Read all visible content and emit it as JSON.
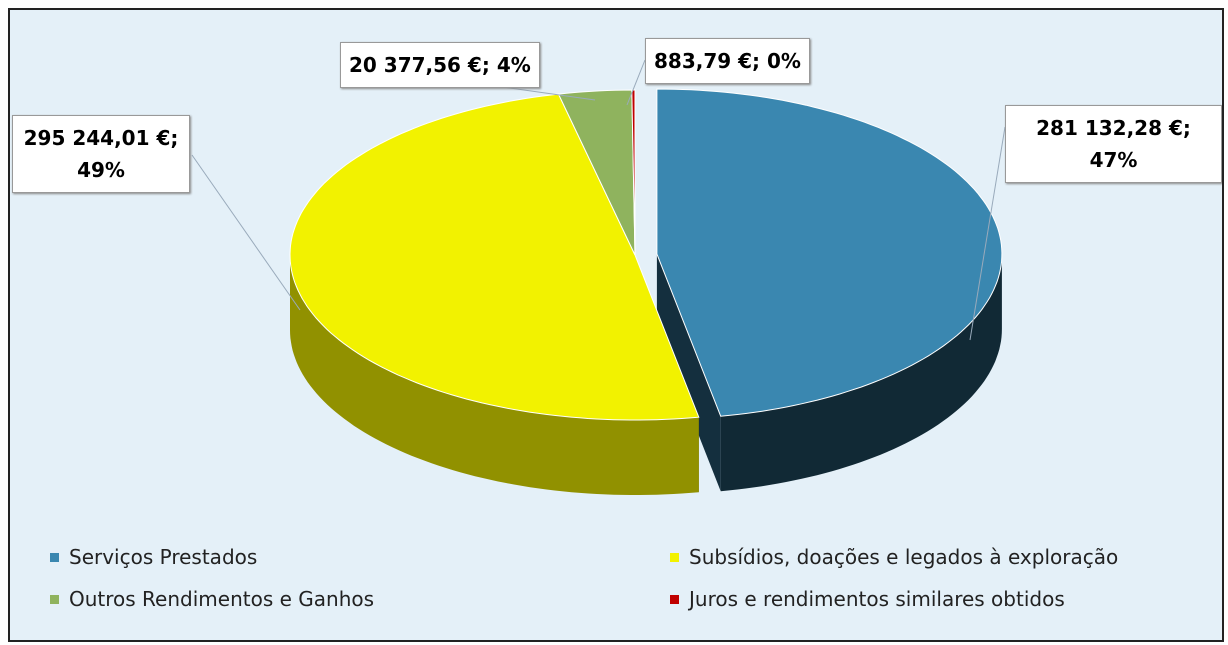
{
  "chart_data": {
    "type": "pie",
    "categories": [
      "Serviços Prestados",
      "Subsídios, doações e legados à exploração",
      "Outros Rendimentos e Ganhos",
      "Juros e rendimentos similares obtidos"
    ],
    "values": [
      281132.28,
      295244.01,
      20377.56,
      883.79
    ],
    "value_labels": [
      "281 132,28 €; 47%",
      "295 244,01 €; 49%",
      "20 377,56 €; 4%",
      "883,79 €; 0%"
    ],
    "colors": [
      "#3a87b0",
      "#f2f200",
      "#8fb35e",
      "#c00000"
    ]
  }
}
